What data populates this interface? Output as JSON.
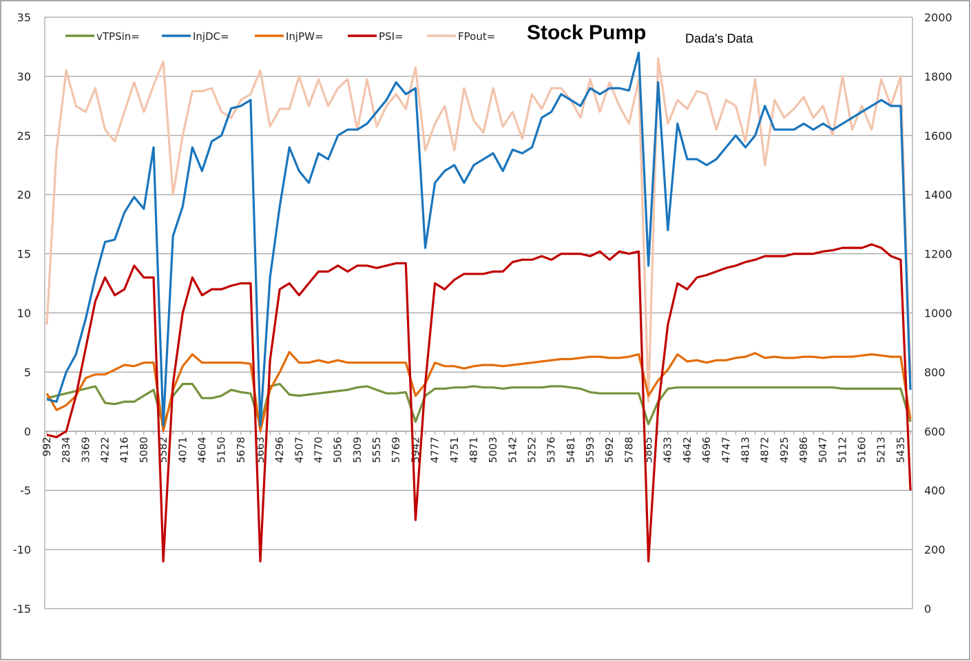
{
  "chart_data": {
    "type": "line",
    "title": "Stock Pump",
    "subtitle": "Dada's Data",
    "xlabel": "",
    "ylabel": "",
    "ylim": [
      -15,
      35
    ],
    "y_ticks": [
      -15,
      -10,
      -5,
      0,
      5,
      10,
      15,
      20,
      25,
      30,
      35
    ],
    "y2lim": [
      0,
      2000
    ],
    "y2_ticks": [
      0,
      200,
      400,
      600,
      800,
      1000,
      1200,
      1400,
      1600,
      1800,
      2000
    ],
    "grid": true,
    "legend": "top-left",
    "x_tick_labels": [
      "992",
      "2834",
      "3369",
      "4222",
      "4116",
      "5080",
      "5582",
      "4071",
      "4604",
      "5150",
      "5678",
      "5663",
      "4296",
      "4507",
      "4770",
      "5056",
      "5309",
      "5555",
      "5769",
      "5942",
      "4777",
      "4751",
      "4871",
      "5003",
      "5142",
      "5252",
      "5376",
      "5481",
      "5593",
      "5692",
      "5788",
      "5865",
      "4633",
      "4642",
      "4696",
      "4747",
      "4813",
      "4872",
      "4925",
      "4986",
      "5047",
      "5112",
      "5160",
      "5213",
      "5435"
    ],
    "series": [
      {
        "name": "vTPSin=",
        "color": "#76923c",
        "axis": "left",
        "values": [
          2.8,
          3,
          3.2,
          3.4,
          3.6,
          3.8,
          2.4,
          2.3,
          2.5,
          2.5,
          3,
          3.5,
          0.5,
          3,
          4,
          4,
          2.8,
          2.8,
          3,
          3.5,
          3.3,
          3.2,
          0.5,
          3.8,
          4,
          3.1,
          3,
          3.1,
          3.2,
          3.3,
          3.4,
          3.5,
          3.7,
          3.8,
          3.5,
          3.2,
          3.2,
          3.3,
          0.8,
          3,
          3.6,
          3.6,
          3.7,
          3.7,
          3.8,
          3.7,
          3.7,
          3.6,
          3.7,
          3.7,
          3.7,
          3.7,
          3.8,
          3.8,
          3.7,
          3.6,
          3.3,
          3.2,
          3.2,
          3.2,
          3.2,
          3.2,
          0.6,
          2.5,
          3.6,
          3.7,
          3.7,
          3.7,
          3.7,
          3.7,
          3.7,
          3.7,
          3.7,
          3.7,
          3.7,
          3.7,
          3.7,
          3.7,
          3.7,
          3.7,
          3.7,
          3.7,
          3.6,
          3.6,
          3.6,
          3.6,
          3.6,
          3.6,
          3.6,
          0.8
        ]
      },
      {
        "name": "InjDC=",
        "color": "#1a75bc",
        "axis": "left",
        "values": [
          2.7,
          2.5,
          5,
          6.5,
          9.5,
          13,
          16,
          16.2,
          18.5,
          19.8,
          18.8,
          24,
          0.5,
          16.5,
          19,
          24,
          22,
          24.5,
          25,
          27.3,
          27.5,
          28,
          0.5,
          13,
          19,
          24,
          22,
          21,
          23.5,
          23,
          25,
          25.5,
          25.5,
          26,
          27,
          28,
          29.5,
          28.5,
          29,
          15.5,
          21,
          22,
          22.5,
          21,
          22.5,
          23,
          23.5,
          22,
          23.8,
          23.5,
          24,
          26.5,
          27,
          28.5,
          28,
          27.5,
          29,
          28.5,
          29,
          29,
          28.8,
          32,
          14,
          29.5,
          17,
          26,
          23,
          23,
          22.5,
          23,
          24,
          25,
          24,
          25,
          27.5,
          25.5,
          25.5,
          25.5,
          26,
          25.5,
          26,
          25.5,
          26,
          26.5,
          27,
          27.5,
          28,
          27.5,
          27.5,
          3.5
        ]
      },
      {
        "name": "InjPW=",
        "color": "#e36c09",
        "axis": "left",
        "values": [
          3.2,
          1.8,
          2.2,
          3,
          4.5,
          4.8,
          4.8,
          5.2,
          5.6,
          5.5,
          5.8,
          5.8,
          0,
          3.5,
          5.5,
          6.5,
          5.8,
          5.8,
          5.8,
          5.8,
          5.8,
          5.7,
          0,
          3.5,
          5,
          6.7,
          5.8,
          5.8,
          6,
          5.8,
          6,
          5.8,
          5.8,
          5.8,
          5.8,
          5.8,
          5.8,
          5.8,
          3,
          4,
          5.8,
          5.5,
          5.5,
          5.3,
          5.5,
          5.6,
          5.6,
          5.5,
          5.6,
          5.7,
          5.8,
          5.9,
          6,
          6.1,
          6.1,
          6.2,
          6.3,
          6.3,
          6.2,
          6.2,
          6.3,
          6.5,
          3,
          4.3,
          5.2,
          6.5,
          5.9,
          6,
          5.8,
          6,
          6,
          6.2,
          6.3,
          6.6,
          6.2,
          6.3,
          6.2,
          6.2,
          6.3,
          6.3,
          6.2,
          6.3,
          6.3,
          6.3,
          6.4,
          6.5,
          6.4,
          6.3,
          6.3,
          1
        ]
      },
      {
        "name": "PSI=",
        "color": "#c00000",
        "axis": "left",
        "values": [
          -0.3,
          -0.5,
          0,
          3,
          7,
          11,
          13,
          11.5,
          12,
          14,
          13,
          13,
          -11,
          4,
          10,
          13,
          11.5,
          12,
          12,
          12.3,
          12.5,
          12.5,
          -11,
          6,
          12,
          12.5,
          11.5,
          12.5,
          13.5,
          13.5,
          14,
          13.5,
          14,
          14,
          13.8,
          14,
          14.2,
          14.2,
          -7.5,
          4,
          12.5,
          12,
          12.8,
          13.3,
          13.3,
          13.3,
          13.5,
          13.5,
          14.3,
          14.5,
          14.5,
          14.8,
          14.5,
          15,
          15,
          15,
          14.8,
          15.2,
          14.5,
          15.2,
          15,
          15.2,
          -11,
          2,
          9,
          12.5,
          12,
          13,
          13.2,
          13.5,
          13.8,
          14,
          14.3,
          14.5,
          14.8,
          14.8,
          14.8,
          15,
          15,
          15,
          15.2,
          15.3,
          15.5,
          15.5,
          15.5,
          15.8,
          15.5,
          14.8,
          14.5,
          -5
        ]
      },
      {
        "name": "FPout=",
        "color": "#f2c4ac",
        "axis": "right",
        "values": [
          960,
          1550,
          1820,
          1700,
          1680,
          1760,
          1620,
          1580,
          1680,
          1780,
          1680,
          1770,
          1850,
          1400,
          1600,
          1750,
          1750,
          1760,
          1680,
          1660,
          1720,
          1740,
          1820,
          1630,
          1690,
          1690,
          1800,
          1700,
          1790,
          1700,
          1760,
          1790,
          1620,
          1790,
          1630,
          1700,
          1740,
          1690,
          1830,
          1550,
          1640,
          1700,
          1550,
          1760,
          1650,
          1610,
          1760,
          1630,
          1680,
          1590,
          1740,
          1690,
          1760,
          1760,
          1720,
          1660,
          1790,
          1680,
          1780,
          1700,
          1640,
          1790,
          700,
          1860,
          1640,
          1720,
          1690,
          1750,
          1740,
          1620,
          1720,
          1700,
          1580,
          1790,
          1500,
          1720,
          1660,
          1690,
          1730,
          1660,
          1700,
          1600,
          1800,
          1620,
          1700,
          1620,
          1790,
          1700,
          1800,
          780
        ]
      }
    ]
  }
}
